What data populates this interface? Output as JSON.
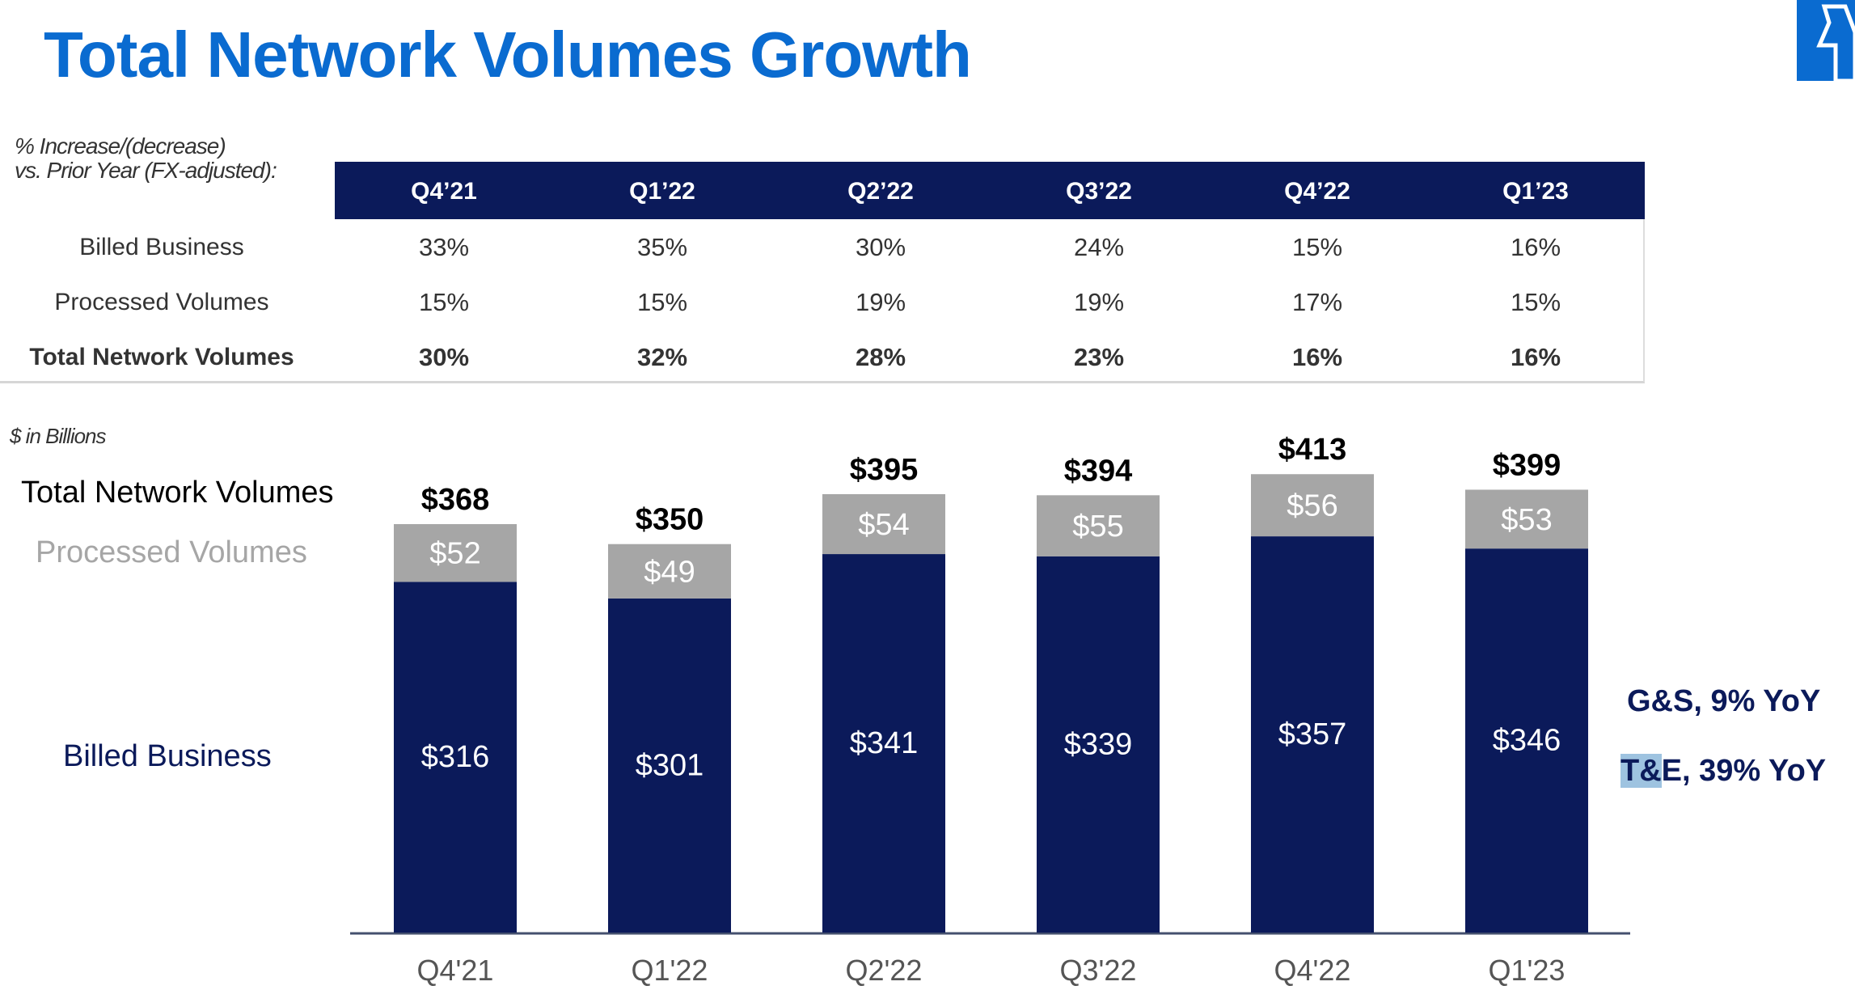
{
  "title": "Total Network Volumes Growth",
  "table": {
    "note_line1": "% Increase/(decrease)",
    "note_line2": "vs. Prior Year (FX-adjusted):",
    "columns": [
      "Q4’21",
      "Q1’22",
      "Q2’22",
      "Q3’22",
      "Q4’22",
      "Q1’23"
    ],
    "rows": [
      {
        "label": "Billed Business",
        "values": [
          "33%",
          "35%",
          "30%",
          "24%",
          "15%",
          "16%"
        ]
      },
      {
        "label": "Processed Volumes",
        "values": [
          "15%",
          "15%",
          "19%",
          "19%",
          "17%",
          "15%"
        ]
      },
      {
        "label": "Total Network Volumes",
        "values": [
          "30%",
          "32%",
          "28%",
          "23%",
          "16%",
          "16%"
        ]
      }
    ]
  },
  "units_note": "$ in Billions",
  "legend": {
    "total": "Total Network Volumes",
    "processed": "Processed Volumes",
    "billed": "Billed Business"
  },
  "annotations": {
    "gs": "G&S, 9% YoY",
    "te_highlight": "T&",
    "te_rest": "E, 39% YoY"
  },
  "colors": {
    "billed": "#0b1a5a",
    "processed": "#a6a6a6",
    "title": "#0a6bd0"
  },
  "chart_data": {
    "type": "bar",
    "stacked": true,
    "categories": [
      "Q4'21",
      "Q1'22",
      "Q2'22",
      "Q3'22",
      "Q4'22",
      "Q1'23"
    ],
    "series": [
      {
        "name": "Billed Business",
        "values": [
          316,
          301,
          341,
          339,
          357,
          346
        ]
      },
      {
        "name": "Processed Volumes",
        "values": [
          52,
          49,
          54,
          55,
          56,
          53
        ]
      }
    ],
    "totals": [
      368,
      350,
      395,
      394,
      413,
      399
    ],
    "value_labels": {
      "billed": [
        "$316",
        "$301",
        "$341",
        "$339",
        "$357",
        "$346"
      ],
      "processed": [
        "$52",
        "$49",
        "$54",
        "$55",
        "$56",
        "$53"
      ],
      "totals": [
        "$368",
        "$350",
        "$395",
        "$394",
        "$413",
        "$399"
      ]
    },
    "ylabel": "$ in Billions",
    "ylim": [
      0,
      420
    ],
    "grid": false
  }
}
